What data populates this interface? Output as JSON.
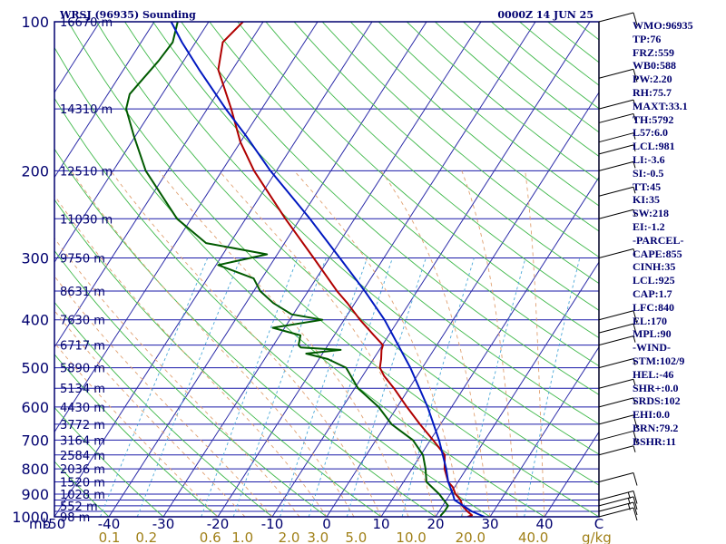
{
  "header": {
    "station": "WRSJ (96935) Sounding",
    "datetime": "0000Z 14 JUN 25"
  },
  "stats": [
    "WMO:96935",
    "TP:76",
    "FRZ:559",
    "WB0:588",
    "PW:2.20",
    "RH:75.7",
    "MAXT:33.1",
    "TH:5792",
    "L57:6.0",
    "LCL:981",
    "LI:-3.6",
    "SI:-0.5",
    "TT:45",
    "KI:35",
    "SW:218",
    "EI:-1.2",
    "-PARCEL-",
    "CAPE:855",
    "CINH:35",
    "LCL:925",
    "CAP:1.7",
    "LFC:840",
    "EL:170",
    "MPL:90",
    "-WIND-",
    "STM:102/9",
    "HEL:-46",
    "SHR+:0.0",
    "SRDS:102",
    "EHI:0.0",
    "BRN:79.2",
    "BSHR:11"
  ],
  "colors": {
    "frame": "#00006f",
    "isobar": "#1a1aa8",
    "isotherm": "#2c2ca8",
    "dry_adiabat": "#3fb84a",
    "moist_adiabat": "#e0a070",
    "mixing_ratio": "#4aa8d8",
    "temperature": "#b00000",
    "dewpoint": "#005a00",
    "parcel": "#0018c0",
    "axis_text": "#00006f",
    "mixing_text": "#a08018",
    "wind": "#000000"
  },
  "chart_data": {
    "type": "skew-t sounding",
    "x_axis": {
      "unit_label": "C",
      "range": [
        -50,
        50
      ],
      "ticks": [
        -50,
        -40,
        -30,
        -20,
        -10,
        0,
        10,
        20,
        30,
        40
      ]
    },
    "pressure_axis": {
      "unit_label": "mb",
      "scale": "log",
      "range": [
        1000,
        100
      ],
      "ticks": [
        100,
        200,
        300,
        400,
        500,
        600,
        700,
        800,
        900,
        1000
      ]
    },
    "height_labels": [
      {
        "p": 100,
        "label": "16670 m"
      },
      {
        "p": 150,
        "label": "14310 m"
      },
      {
        "p": 200,
        "label": "12510 m"
      },
      {
        "p": 250,
        "label": "11030 m"
      },
      {
        "p": 300,
        "label": "9750 m"
      },
      {
        "p": 350,
        "label": "8631 m"
      },
      {
        "p": 400,
        "label": "7630 m"
      },
      {
        "p": 450,
        "label": "6717 m"
      },
      {
        "p": 500,
        "label": "5890 m"
      },
      {
        "p": 550,
        "label": "5134 m"
      },
      {
        "p": 600,
        "label": "4430 m"
      },
      {
        "p": 650,
        "label": "3772 m"
      },
      {
        "p": 700,
        "label": "3164 m"
      },
      {
        "p": 750,
        "label": "2584 m"
      },
      {
        "p": 800,
        "label": "2036 m"
      },
      {
        "p": 850,
        "label": "1520 m"
      },
      {
        "p": 900,
        "label": "1028 m"
      },
      {
        "p": 950,
        "label": "552 m"
      },
      {
        "p": 1000,
        "label": "98 m"
      }
    ],
    "mixing_ratio": {
      "unit_label": "g/kg",
      "labels": [
        "0.1",
        "0.2",
        "0.6",
        "1.0",
        "2.0",
        "3.0",
        "5.0",
        "10.0",
        "20.0",
        "40.0"
      ],
      "values": [
        0.1,
        0.2,
        0.6,
        1.0,
        2.0,
        3.0,
        5.0,
        10.0,
        20.0,
        40.0
      ]
    },
    "series": [
      {
        "key": "temperature",
        "points": [
          {
            "p": 1000,
            "t": 25.9
          },
          {
            "p": 993,
            "t": 26.5
          },
          {
            "p": 975,
            "t": 25.2
          },
          {
            "p": 950,
            "t": 23.6
          },
          {
            "p": 925,
            "t": 22.6
          },
          {
            "p": 900,
            "t": 21.0
          },
          {
            "p": 870,
            "t": 19.6
          },
          {
            "p": 850,
            "t": 18.2
          },
          {
            "p": 800,
            "t": 16.0
          },
          {
            "p": 750,
            "t": 14.4
          },
          {
            "p": 700,
            "t": 10.5
          },
          {
            "p": 650,
            "t": 6.2
          },
          {
            "p": 600,
            "t": 1.8
          },
          {
            "p": 550,
            "t": -2.8
          },
          {
            "p": 520,
            "t": -6.0
          },
          {
            "p": 500,
            "t": -7.8
          },
          {
            "p": 480,
            "t": -8.6
          },
          {
            "p": 460,
            "t": -9.6
          },
          {
            "p": 450,
            "t": -9.9
          },
          {
            "p": 430,
            "t": -12.7
          },
          {
            "p": 400,
            "t": -17.1
          },
          {
            "p": 370,
            "t": -21.4
          },
          {
            "p": 350,
            "t": -24.7
          },
          {
            "p": 300,
            "t": -32.9
          },
          {
            "p": 250,
            "t": -42.7
          },
          {
            "p": 200,
            "t": -54.1
          },
          {
            "p": 175,
            "t": -60.0
          },
          {
            "p": 150,
            "t": -65.6
          },
          {
            "p": 125,
            "t": -72.6
          },
          {
            "p": 110,
            "t": -75.0
          },
          {
            "p": 100,
            "t": -73.7
          }
        ]
      },
      {
        "key": "dewpoint",
        "points": [
          {
            "p": 1000,
            "t": 20.9
          },
          {
            "p": 993,
            "t": 20.8
          },
          {
            "p": 975,
            "t": 21.0
          },
          {
            "p": 950,
            "t": 21.0
          },
          {
            "p": 900,
            "t": 18.0
          },
          {
            "p": 850,
            "t": 14.2
          },
          {
            "p": 800,
            "t": 12.5
          },
          {
            "p": 750,
            "t": 10.4
          },
          {
            "p": 700,
            "t": 6.8
          },
          {
            "p": 650,
            "t": 1.0
          },
          {
            "p": 600,
            "t": -3.4
          },
          {
            "p": 550,
            "t": -9.4
          },
          {
            "p": 500,
            "t": -14.0
          },
          {
            "p": 480,
            "t": -18.4
          },
          {
            "p": 468,
            "t": -23.0
          },
          {
            "p": 460,
            "t": -17.1
          },
          {
            "p": 455,
            "t": -24.7
          },
          {
            "p": 450,
            "t": -25.4
          },
          {
            "p": 430,
            "t": -26.2
          },
          {
            "p": 415,
            "t": -32.2
          },
          {
            "p": 400,
            "t": -24.0
          },
          {
            "p": 390,
            "t": -30.3
          },
          {
            "p": 370,
            "t": -35.0
          },
          {
            "p": 350,
            "t": -38.8
          },
          {
            "p": 330,
            "t": -41.5
          },
          {
            "p": 310,
            "t": -49.6
          },
          {
            "p": 295,
            "t": -41.9
          },
          {
            "p": 280,
            "t": -54.4
          },
          {
            "p": 250,
            "t": -62.6
          },
          {
            "p": 200,
            "t": -74.0
          },
          {
            "p": 170,
            "t": -80.3
          },
          {
            "p": 150,
            "t": -84.9
          },
          {
            "p": 140,
            "t": -86.0
          },
          {
            "p": 120,
            "t": -84.6
          },
          {
            "p": 110,
            "t": -84.2
          },
          {
            "p": 100,
            "t": -85.7
          }
        ]
      },
      {
        "key": "parcel",
        "points": [
          {
            "p": 1000,
            "t": 29.0
          },
          {
            "p": 975,
            "t": 26.0
          },
          {
            "p": 925,
            "t": 21.5
          },
          {
            "p": 900,
            "t": 20.5
          },
          {
            "p": 850,
            "t": 18.2
          },
          {
            "p": 800,
            "t": 16.3
          },
          {
            "p": 700,
            "t": 11.6
          },
          {
            "p": 600,
            "t": 5.6
          },
          {
            "p": 500,
            "t": -2.2
          },
          {
            "p": 400,
            "t": -12.6
          },
          {
            "p": 350,
            "t": -19.6
          },
          {
            "p": 300,
            "t": -28.1
          },
          {
            "p": 250,
            "t": -38.2
          },
          {
            "p": 200,
            "t": -51.1
          },
          {
            "p": 170,
            "t": -59.7
          },
          {
            "p": 150,
            "t": -66.6
          },
          {
            "p": 125,
            "t": -76.1
          },
          {
            "p": 110,
            "t": -82.5
          },
          {
            "p": 100,
            "t": -86.9
          }
        ]
      }
    ],
    "wind_barbs": [
      {
        "p": 100,
        "speed_kt": 10
      },
      {
        "p": 130,
        "speed_kt": 10
      },
      {
        "p": 150,
        "speed_kt": 5
      },
      {
        "p": 160,
        "speed_kt": 5
      },
      {
        "p": 175,
        "speed_kt": 5
      },
      {
        "p": 185,
        "speed_kt": 5
      },
      {
        "p": 200,
        "speed_kt": 5
      },
      {
        "p": 225,
        "speed_kt": 5
      },
      {
        "p": 250,
        "speed_kt": 5
      },
      {
        "p": 300,
        "speed_kt": 5
      },
      {
        "p": 400,
        "speed_kt": 10
      },
      {
        "p": 425,
        "speed_kt": 10
      },
      {
        "p": 450,
        "speed_kt": 5
      },
      {
        "p": 500,
        "speed_kt": 5
      },
      {
        "p": 550,
        "speed_kt": 5
      },
      {
        "p": 600,
        "speed_kt": 5
      },
      {
        "p": 650,
        "speed_kt": 10
      },
      {
        "p": 700,
        "speed_kt": 10
      },
      {
        "p": 750,
        "speed_kt": 5
      },
      {
        "p": 850,
        "speed_kt": 10
      },
      {
        "p": 925,
        "speed_kt": 15
      },
      {
        "p": 950,
        "speed_kt": 15
      },
      {
        "p": 975,
        "speed_kt": 15
      },
      {
        "p": 1000,
        "speed_kt": 10
      }
    ]
  }
}
